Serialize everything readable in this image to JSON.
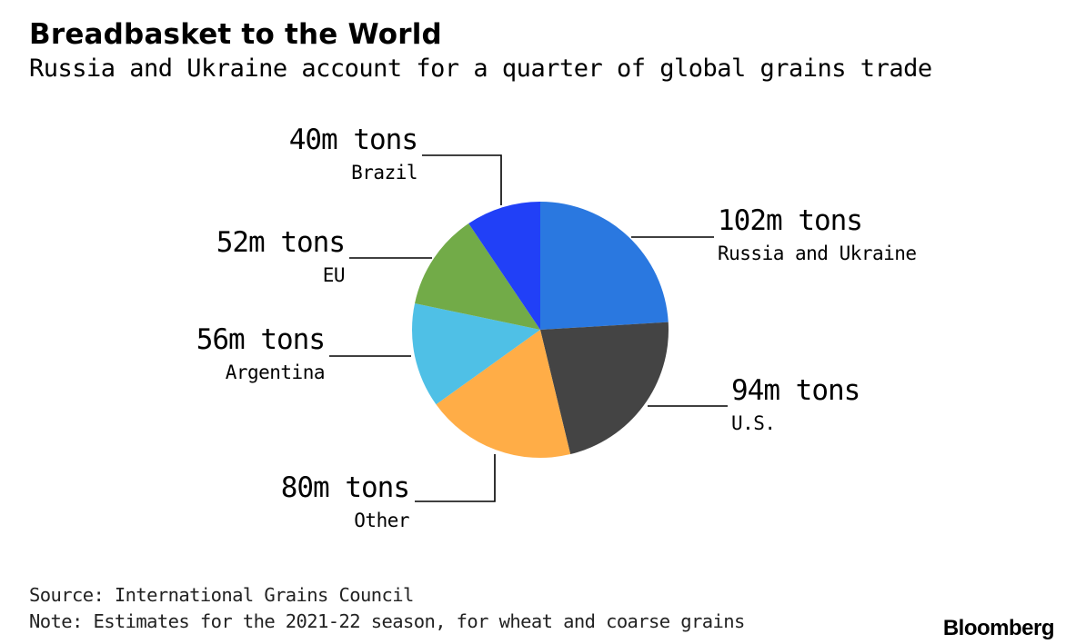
{
  "title": "Breadbasket to the World",
  "subtitle": "Russia and Ukraine account for a quarter of global grains trade",
  "source": "Source: International Grains Council",
  "note": "Note: Estimates for the 2021-22 season, for wheat and coarse grains",
  "logo": "Bloomberg",
  "chart_data": {
    "type": "pie",
    "unit": "m tons",
    "start_angle_deg": 0,
    "direction": "clockwise",
    "slices": [
      {
        "key": "russia-ukraine",
        "name": "Russia and Ukraine",
        "value": 102,
        "label": "102m tons",
        "color": "#2a78e0"
      },
      {
        "key": "us",
        "name": "U.S.",
        "value": 94,
        "label": "94m tons",
        "color": "#444444"
      },
      {
        "key": "other",
        "name": "Other",
        "value": 80,
        "label": "80m tons",
        "color": "#ffad47"
      },
      {
        "key": "argentina",
        "name": "Argentina",
        "value": 56,
        "label": "56m tons",
        "color": "#4fc0e6"
      },
      {
        "key": "eu",
        "name": "EU",
        "value": 52,
        "label": "52m tons",
        "color": "#72ab48"
      },
      {
        "key": "brazil",
        "name": "Brazil",
        "value": 40,
        "label": "40m tons",
        "color": "#2140f7"
      }
    ]
  }
}
